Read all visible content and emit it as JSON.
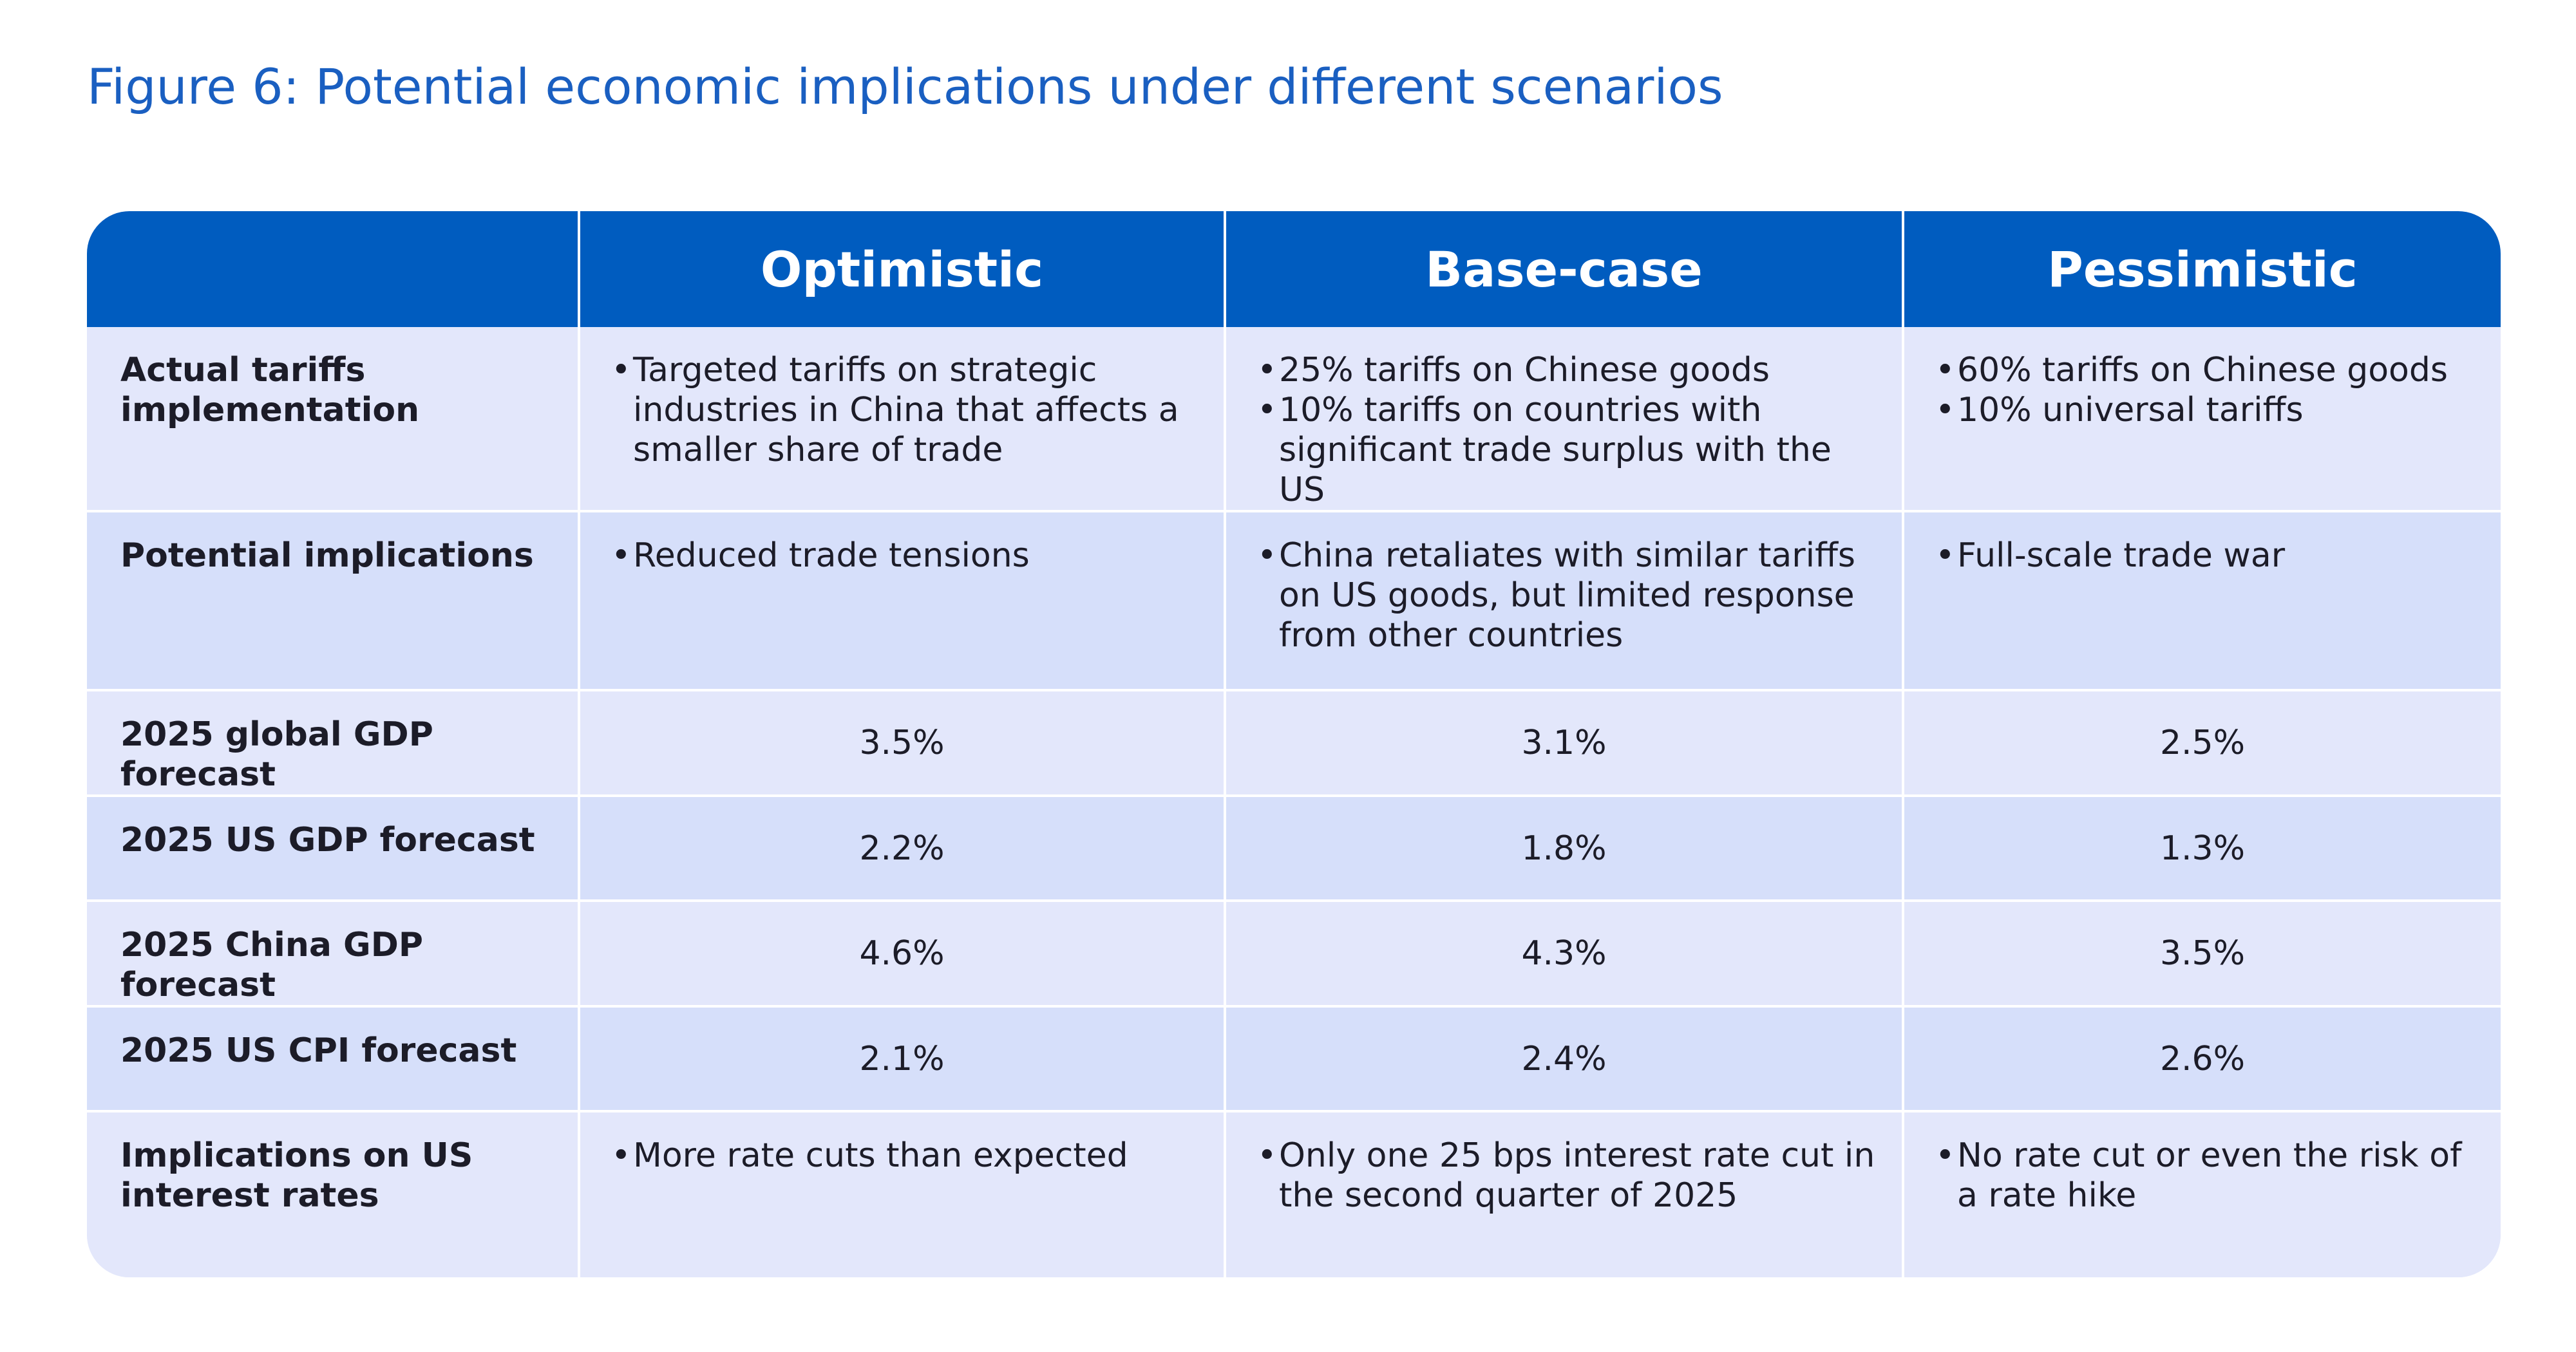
{
  "title": "Figure 6: Potential economic implications under different scenarios",
  "colors": {
    "accent_blue": "#005cbf",
    "title_blue": "#1a5fc1",
    "row_light": "#e3e7fb",
    "row_dark": "#d6dffa"
  },
  "table": {
    "headers": [
      "",
      "Optimistic",
      "Base-case",
      "Pessimistic"
    ],
    "rows": [
      {
        "label": "Actual tariffs implementation",
        "optimistic": [
          "Targeted tariffs on strategic industries in China that affects a smaller share of trade"
        ],
        "base": [
          "25% tariffs on Chinese goods",
          "10% tariffs on countries with significant trade surplus with the US"
        ],
        "pessimistic": [
          "60% tariffs on Chinese goods",
          "10% universal tariffs"
        ]
      },
      {
        "label": "Potential implications",
        "optimistic": [
          "Reduced trade tensions"
        ],
        "base": [
          "China retaliates with similar tariffs on US goods, but limited response from other countries"
        ],
        "pessimistic": [
          "Full-scale trade war"
        ]
      },
      {
        "label": "2025 global GDP forecast",
        "optimistic": "3.5%",
        "base": "3.1%",
        "pessimistic": "2.5%"
      },
      {
        "label": "2025 US GDP forecast",
        "optimistic": "2.2%",
        "base": "1.8%",
        "pessimistic": "1.3%"
      },
      {
        "label": "2025 China GDP forecast",
        "optimistic": "4.6%",
        "base": "4.3%",
        "pessimistic": "3.5%"
      },
      {
        "label": "2025 US CPI forecast",
        "optimistic": "2.1%",
        "base": "2.4%",
        "pessimistic": "2.6%"
      },
      {
        "label": "Implications on US interest rates",
        "optimistic": [
          "More rate cuts than expected"
        ],
        "base": [
          "Only one 25 bps interest rate cut in the second quarter of 2025"
        ],
        "pessimistic": [
          "No rate cut or even the risk of a rate hike"
        ]
      }
    ]
  }
}
